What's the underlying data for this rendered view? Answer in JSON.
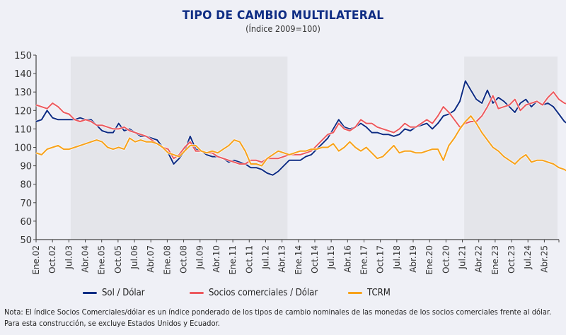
{
  "colors": {
    "sol": "#0f2d84",
    "socios": "#ec5a5f",
    "tcrm": "#f7a21b",
    "shade": "#e4e5ea",
    "axis": "#444444"
  },
  "chart_data": {
    "type": "line",
    "title": "TIPO DE CAMBIO MULTILATERAL",
    "subtitle": "(Índice 2009=100)",
    "xlabel": "",
    "ylabel": "",
    "ylim": [
      50,
      150
    ],
    "yticks": [
      50,
      60,
      70,
      80,
      90,
      100,
      110,
      120,
      130,
      140,
      150
    ],
    "x_tick_labels": [
      "Ene.02",
      "Oct.02",
      "Jul.03",
      "Abr.04",
      "Ene.05",
      "Oct.05",
      "Jul.06",
      "Abr.07",
      "Ene.08",
      "Oct.08",
      "Jul.09",
      "Abr.10",
      "Ene.11",
      "Oct.11",
      "Jul.12",
      "Abr.13",
      "Ene.14",
      "Oct.14",
      "Jul.15",
      "Abr.16",
      "Ene.17",
      "Oct.17",
      "Jul.18",
      "Abr.19",
      "Ene.20",
      "Oct.20",
      "Jul.21",
      "Abr.22",
      "Ene.23",
      "Oct.23",
      "Jul.24",
      "Abr.25"
    ],
    "x_period": "quarterly, Q1 2002 to Q4 2025",
    "shaded_periods": [
      {
        "from": "Ago.03",
        "to": "Jul.13"
      },
      {
        "from": "Ago.21",
        "to": "Dic.25"
      }
    ],
    "x": [
      "2002Q1",
      "2002Q2",
      "2002Q3",
      "2002Q4",
      "2003Q1",
      "2003Q2",
      "2003Q3",
      "2003Q4",
      "2004Q1",
      "2004Q2",
      "2004Q3",
      "2004Q4",
      "2005Q1",
      "2005Q2",
      "2005Q3",
      "2005Q4",
      "2006Q1",
      "2006Q2",
      "2006Q3",
      "2006Q4",
      "2007Q1",
      "2007Q2",
      "2007Q3",
      "2007Q4",
      "2008Q1",
      "2008Q2",
      "2008Q3",
      "2008Q4",
      "2009Q1",
      "2009Q2",
      "2009Q3",
      "2009Q4",
      "2010Q1",
      "2010Q2",
      "2010Q3",
      "2010Q4",
      "2011Q1",
      "2011Q2",
      "2011Q3",
      "2011Q4",
      "2012Q1",
      "2012Q2",
      "2012Q3",
      "2012Q4",
      "2013Q1",
      "2013Q2",
      "2013Q3",
      "2013Q4",
      "2014Q1",
      "2014Q2",
      "2014Q3",
      "2014Q4",
      "2015Q1",
      "2015Q2",
      "2015Q3",
      "2015Q4",
      "2016Q1",
      "2016Q2",
      "2016Q3",
      "2016Q4",
      "2017Q1",
      "2017Q2",
      "2017Q3",
      "2017Q4",
      "2018Q1",
      "2018Q2",
      "2018Q3",
      "2018Q4",
      "2019Q1",
      "2019Q2",
      "2019Q3",
      "2019Q4",
      "2020Q1",
      "2020Q2",
      "2020Q3",
      "2020Q4",
      "2021Q1",
      "2021Q2",
      "2021Q3",
      "2021Q4",
      "2022Q1",
      "2022Q2",
      "2022Q3",
      "2022Q4",
      "2023Q1",
      "2023Q2",
      "2023Q3",
      "2023Q4",
      "2024Q1",
      "2024Q2",
      "2024Q3",
      "2024Q4",
      "2025Q1",
      "2025Q2",
      "2025Q3",
      "2025Q4"
    ],
    "series": [
      {
        "name": "Sol / Dólar",
        "color_key": "sol",
        "values": [
          114,
          115,
          120,
          116,
          115,
          115,
          115,
          115,
          116,
          115,
          115,
          112,
          109,
          108,
          108,
          113,
          109,
          110,
          108,
          106,
          106,
          105,
          104,
          100,
          97,
          91,
          94,
          98,
          106,
          99,
          98,
          96,
          95,
          95,
          94,
          92,
          93,
          92,
          91,
          89,
          89,
          88,
          86,
          85,
          87,
          90,
          93,
          93,
          93,
          95,
          96,
          99,
          102,
          105,
          110,
          115,
          111,
          110,
          111,
          113,
          111,
          108,
          108,
          107,
          107,
          106,
          107,
          110,
          109,
          111,
          112,
          113,
          110,
          113,
          117,
          118,
          120,
          125,
          136,
          131,
          126,
          124,
          131,
          124,
          127,
          125,
          122,
          119,
          124,
          126,
          122,
          125,
          123,
          124,
          122,
          118,
          114,
          112
        ]
      },
      {
        "name": "Socios comerciales / Dólar",
        "color_key": "socios",
        "values": [
          123,
          122,
          121,
          124,
          122,
          119,
          118,
          115,
          114,
          115,
          114,
          112,
          112,
          111,
          110,
          110,
          111,
          109,
          108,
          107,
          106,
          104,
          102,
          100,
          99,
          94,
          96,
          100,
          103,
          98,
          98,
          97,
          97,
          95,
          94,
          93,
          92,
          91,
          91,
          93,
          93,
          92,
          94,
          94,
          94,
          95,
          96,
          96,
          96,
          97,
          98,
          101,
          104,
          107,
          108,
          113,
          110,
          109,
          111,
          115,
          113,
          113,
          111,
          110,
          109,
          108,
          110,
          113,
          111,
          111,
          113,
          115,
          113,
          117,
          122,
          119,
          115,
          111,
          113,
          114,
          114,
          117,
          122,
          128,
          121,
          122,
          123,
          126,
          120,
          123,
          124,
          125,
          123,
          127,
          130,
          126,
          124,
          123
        ]
      },
      {
        "name": "TCRM",
        "color_key": "tcrm",
        "values": [
          97,
          96,
          99,
          100,
          101,
          99,
          99,
          100,
          101,
          102,
          103,
          104,
          103,
          100,
          99,
          100,
          99,
          105,
          103,
          104,
          103,
          103,
          102,
          100,
          97,
          96,
          95,
          98,
          101,
          101,
          98,
          97,
          98,
          97,
          99,
          101,
          104,
          103,
          98,
          91,
          91,
          90,
          94,
          96,
          98,
          97,
          96,
          97,
          98,
          98,
          99,
          99,
          100,
          100,
          102,
          98,
          100,
          103,
          100,
          98,
          100,
          97,
          94,
          95,
          98,
          101,
          97,
          98,
          98,
          97,
          97,
          98,
          99,
          99,
          93,
          101,
          105,
          110,
          114,
          117,
          113,
          108,
          104,
          100,
          98,
          95,
          93,
          91,
          94,
          96,
          92,
          93,
          93,
          92,
          91,
          89,
          88,
          86
        ]
      }
    ]
  },
  "legend": {
    "items": [
      {
        "label": "Sol / Dólar"
      },
      {
        "label": "Socios comerciales / Dólar"
      },
      {
        "label": "TCRM"
      }
    ]
  },
  "note": "Nota: El índice Socios Comerciales/dólar es un índice ponderado de los tipos de cambio nominales de las monedas de los socios comerciales frente al dólar. Para esta construcción, se excluye Estados Unidos y Ecuador."
}
